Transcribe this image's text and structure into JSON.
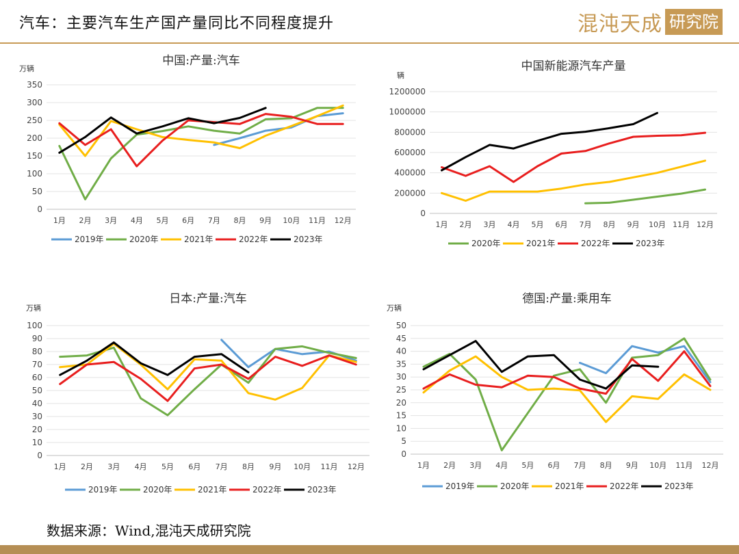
{
  "header": {
    "title": "汽车：主要汽车生产国产量同比不同程度提升",
    "logo_main": "混沌天成",
    "logo_box": "研究院"
  },
  "source": "数据来源：Wind,混沌天成研究院",
  "colors": {
    "2019年": "#5b9bd5",
    "2020年": "#70ad47",
    "2021年": "#ffc000",
    "2022年": "#e81e1e",
    "2023年": "#000000",
    "accent": "#c79a55"
  },
  "chart_data": [
    {
      "type": "line",
      "title": "中国:产量:汽车",
      "ylabel": "万辆",
      "ylim": [
        0,
        350
      ],
      "yticks": [
        0,
        50,
        100,
        150,
        200,
        250,
        300,
        350
      ],
      "categories": [
        "1月",
        "2月",
        "3月",
        "4月",
        "5月",
        "6月",
        "7月",
        "8月",
        "9月",
        "10月",
        "11月",
        "12月"
      ],
      "grid": true,
      "legend": "bottom",
      "series": [
        {
          "name": "2019年",
          "values": [
            null,
            null,
            null,
            null,
            null,
            null,
            181,
            200,
            221,
            230,
            262,
            270
          ]
        },
        {
          "name": "2020年",
          "values": [
            178,
            28,
            143,
            210,
            220,
            233,
            221,
            213,
            253,
            256,
            285,
            285
          ]
        },
        {
          "name": "2021年",
          "values": [
            238,
            150,
            248,
            225,
            203,
            195,
            188,
            172,
            207,
            234,
            262,
            292
          ]
        },
        {
          "name": "2022年",
          "values": [
            242,
            181,
            225,
            121,
            193,
            250,
            245,
            240,
            268,
            260,
            240,
            240
          ]
        },
        {
          "name": "2023年",
          "values": [
            159,
            203,
            258,
            213,
            233,
            256,
            242,
            257,
            285,
            null,
            null,
            null
          ]
        }
      ]
    },
    {
      "type": "line",
      "title": "中国新能源汽车产量",
      "ylabel": "辆",
      "ylim": [
        0,
        1200000
      ],
      "yticks": [
        0,
        200000,
        400000,
        600000,
        800000,
        1000000,
        1200000
      ],
      "categories": [
        "1月",
        "2月",
        "3月",
        "4月",
        "5月",
        "6月",
        "7月",
        "8月",
        "9月",
        "10月",
        "11月",
        "12月"
      ],
      "grid": true,
      "legend": "bottom",
      "series": [
        {
          "name": "2020年",
          "values": [
            null,
            null,
            null,
            null,
            null,
            null,
            100000,
            105000,
            135000,
            165000,
            195000,
            235000
          ]
        },
        {
          "name": "2021年",
          "values": [
            200000,
            125000,
            215000,
            215000,
            215000,
            245000,
            285000,
            310000,
            355000,
            400000,
            460000,
            520000
          ]
        },
        {
          "name": "2022年",
          "values": [
            455000,
            370000,
            465000,
            310000,
            465000,
            590000,
            615000,
            690000,
            755000,
            765000,
            770000,
            795000
          ]
        },
        {
          "name": "2023年",
          "values": [
            425000,
            555000,
            675000,
            640000,
            715000,
            785000,
            805000,
            840000,
            880000,
            990000,
            null,
            null
          ]
        }
      ]
    },
    {
      "type": "line",
      "title": "日本:产量:汽车",
      "ylabel": "万辆",
      "ylim": [
        0,
        100
      ],
      "yticks": [
        0,
        10,
        20,
        30,
        40,
        50,
        60,
        70,
        80,
        90,
        100
      ],
      "categories": [
        "1月",
        "2月",
        "3月",
        "4月",
        "5月",
        "6月",
        "7月",
        "8月",
        "9月",
        "10月",
        "11月",
        "12月"
      ],
      "grid": true,
      "legend": "bottom",
      "series": [
        {
          "name": "2019年",
          "values": [
            null,
            null,
            null,
            null,
            null,
            null,
            89,
            68,
            82,
            78,
            80,
            73
          ]
        },
        {
          "name": "2020年",
          "values": [
            76,
            77,
            83,
            44,
            31,
            51,
            70,
            56,
            82,
            84,
            79,
            75
          ]
        },
        {
          "name": "2021年",
          "values": [
            68,
            70,
            86,
            70,
            51,
            74,
            73,
            48,
            43,
            52,
            77,
            72
          ]
        },
        {
          "name": "2022年",
          "values": [
            55,
            70,
            72,
            59,
            42,
            67,
            70,
            59,
            76,
            69,
            77,
            70
          ]
        },
        {
          "name": "2023年",
          "values": [
            62,
            73,
            87,
            71,
            62,
            76,
            78,
            64,
            null,
            null,
            null,
            null
          ]
        }
      ]
    },
    {
      "type": "line",
      "title": "德国:产量:乘用车",
      "ylabel": "万辆",
      "ylim": [
        0,
        50
      ],
      "yticks": [
        0,
        5,
        10,
        15,
        20,
        25,
        30,
        35,
        40,
        45,
        50
      ],
      "categories": [
        "1月",
        "2月",
        "3月",
        "4月",
        "5月",
        "6月",
        "7月",
        "8月",
        "9月",
        "10月",
        "11月",
        "12月"
      ],
      "grid": true,
      "legend": "bottom",
      "series": [
        {
          "name": "2019年",
          "values": [
            null,
            null,
            null,
            null,
            null,
            null,
            35.5,
            31.5,
            42,
            39.5,
            42,
            28
          ]
        },
        {
          "name": "2020年",
          "values": [
            34,
            39,
            29,
            1.5,
            16,
            30.5,
            33,
            20,
            37.5,
            38.5,
            45,
            29
          ]
        },
        {
          "name": "2021年",
          "values": [
            24,
            32.5,
            38,
            30,
            25,
            25.5,
            24.8,
            12.5,
            22.5,
            21.5,
            31,
            25
          ]
        },
        {
          "name": "2022年",
          "values": [
            25.5,
            31,
            27,
            26,
            30.5,
            30,
            25.5,
            23.5,
            37,
            28.5,
            40,
            26.5
          ]
        },
        {
          "name": "2023年",
          "values": [
            33,
            38.5,
            44,
            32,
            38,
            38.5,
            29,
            25.5,
            34.5,
            34,
            null,
            null
          ]
        }
      ]
    }
  ]
}
